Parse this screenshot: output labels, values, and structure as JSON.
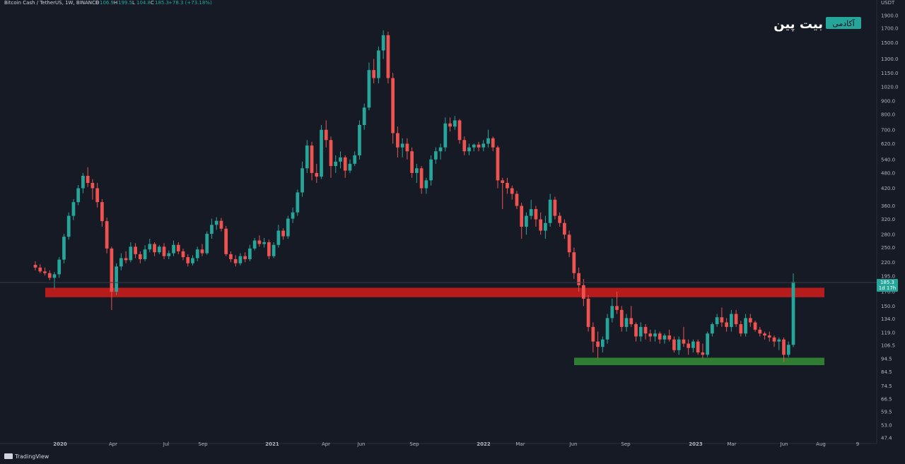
{
  "header": {
    "symbol": "Bitcoin Cash / TetherUS, 1W, BINANCE",
    "ohlc_prefix": "O",
    "open": "106.9",
    "high_prefix": "H",
    "high": "199.5",
    "low_prefix": "L",
    "low": "104.8",
    "close_prefix": "C",
    "close": "185.3",
    "change": "+78.3 (+73.18%)"
  },
  "logo": {
    "badge_text": "آکادمی",
    "brand_text": "بیت پین"
  },
  "price_axis": {
    "currency": "USDT",
    "ticks": [
      "1900.0",
      "1700.0",
      "1500.0",
      "1300.0",
      "1150.0",
      "1020.0",
      "900.0",
      "800.0",
      "700.0",
      "620.0",
      "540.0",
      "480.0",
      "420.0",
      "360.0",
      "320.0",
      "280.0",
      "250.0",
      "220.0",
      "195.0",
      "170.0",
      "150.0",
      "134.0",
      "119.0",
      "106.5",
      "94.5",
      "84.5",
      "74.5",
      "66.5",
      "59.5",
      "53.0",
      "47.4"
    ],
    "current_price": "185.3",
    "countdown": "1d 17h"
  },
  "time_axis": {
    "ticks": [
      "2020",
      "Apr",
      "Jul",
      "Sep",
      "2021",
      "Apr",
      "Jun",
      "Sep",
      "2022",
      "Mar",
      "Jun",
      "Sep",
      "2023",
      "Mar",
      "Jun",
      "Aug",
      "9"
    ]
  },
  "footer": {
    "brand": "TradingView"
  },
  "colors": {
    "background": "#161a25",
    "up": "#26a69a",
    "down": "#ef5350",
    "resistance_zone": "#b71c1c",
    "support_zone": "#2e7d32",
    "axis_text": "#b2b5be",
    "price_tag": "#26a69a"
  },
  "chart_data": {
    "type": "candlestick",
    "scale": "log",
    "ylim": [
      47.4,
      1950
    ],
    "zones": [
      {
        "name": "resistance",
        "from": 162,
        "to": 176,
        "start": "2019-12",
        "end": "2023-08",
        "color": "#b71c1c"
      },
      {
        "name": "support",
        "from": 89.5,
        "to": 95.5,
        "start": "2022-06",
        "end": "2023-08",
        "color": "#2e7d32"
      }
    ],
    "ohlc": [
      [
        215,
        222,
        205,
        210
      ],
      [
        210,
        216,
        200,
        203
      ],
      [
        203,
        210,
        196,
        200
      ],
      [
        200,
        205,
        188,
        192
      ],
      [
        192,
        202,
        175,
        198
      ],
      [
        198,
        230,
        192,
        225
      ],
      [
        225,
        282,
        218,
        275
      ],
      [
        275,
        340,
        268,
        330
      ],
      [
        330,
        382,
        318,
        372
      ],
      [
        372,
        432,
        362,
        420
      ],
      [
        420,
        480,
        402,
        468
      ],
      [
        468,
        505,
        425,
        440
      ],
      [
        440,
        455,
        380,
        420
      ],
      [
        420,
        440,
        355,
        372
      ],
      [
        372,
        382,
        300,
        315
      ],
      [
        315,
        325,
        238,
        248
      ],
      [
        248,
        252,
        145,
        170
      ],
      [
        170,
        218,
        165,
        212
      ],
      [
        212,
        238,
        205,
        228
      ],
      [
        228,
        242,
        218,
        224
      ],
      [
        224,
        262,
        220,
        252
      ],
      [
        252,
        260,
        228,
        236
      ],
      [
        236,
        242,
        218,
        226
      ],
      [
        226,
        255,
        222,
        246
      ],
      [
        246,
        270,
        240,
        258
      ],
      [
        258,
        262,
        232,
        240
      ],
      [
        240,
        256,
        236,
        252
      ],
      [
        252,
        260,
        226,
        232
      ],
      [
        232,
        244,
        226,
        238
      ],
      [
        238,
        266,
        232,
        256
      ],
      [
        256,
        262,
        236,
        242
      ],
      [
        242,
        248,
        224,
        230
      ],
      [
        230,
        236,
        212,
        218
      ],
      [
        218,
        234,
        214,
        228
      ],
      [
        228,
        252,
        222,
        246
      ],
      [
        246,
        258,
        232,
        238
      ],
      [
        238,
        288,
        235,
        282
      ],
      [
        282,
        322,
        270,
        305
      ],
      [
        305,
        326,
        292,
        316
      ],
      [
        316,
        324,
        288,
        295
      ],
      [
        295,
        302,
        232,
        236
      ],
      [
        236,
        242,
        220,
        226
      ],
      [
        226,
        234,
        212,
        218
      ],
      [
        218,
        238,
        214,
        232
      ],
      [
        232,
        240,
        220,
        226
      ],
      [
        226,
        256,
        222,
        248
      ],
      [
        248,
        272,
        244,
        266
      ],
      [
        266,
        278,
        252,
        258
      ],
      [
        258,
        272,
        250,
        262
      ],
      [
        262,
        268,
        226,
        232
      ],
      [
        232,
        262,
        228,
        256
      ],
      [
        256,
        305,
        250,
        290
      ],
      [
        290,
        296,
        268,
        276
      ],
      [
        276,
        330,
        270,
        322
      ],
      [
        322,
        355,
        310,
        340
      ],
      [
        340,
        415,
        330,
        405
      ],
      [
        405,
        530,
        390,
        500
      ],
      [
        500,
        640,
        480,
        610
      ],
      [
        610,
        630,
        450,
        480
      ],
      [
        480,
        520,
        440,
        465
      ],
      [
        465,
        730,
        455,
        700
      ],
      [
        700,
        760,
        600,
        640
      ],
      [
        640,
        660,
        460,
        510
      ],
      [
        510,
        560,
        480,
        530
      ],
      [
        530,
        580,
        500,
        550
      ],
      [
        550,
        560,
        460,
        490
      ],
      [
        490,
        540,
        480,
        520
      ],
      [
        520,
        580,
        510,
        560
      ],
      [
        560,
        760,
        540,
        730
      ],
      [
        730,
        880,
        700,
        850
      ],
      [
        850,
        1260,
        830,
        1180
      ],
      [
        1180,
        1300,
        1050,
        1100
      ],
      [
        1100,
        1450,
        1050,
        1400
      ],
      [
        1400,
        1670,
        1300,
        1600
      ],
      [
        1600,
        1650,
        1050,
        1100
      ],
      [
        1100,
        1150,
        620,
        680
      ],
      [
        680,
        720,
        550,
        600
      ],
      [
        600,
        650,
        550,
        620
      ],
      [
        620,
        650,
        540,
        580
      ],
      [
        580,
        600,
        460,
        480
      ],
      [
        480,
        520,
        440,
        500
      ],
      [
        500,
        510,
        400,
        420
      ],
      [
        420,
        460,
        400,
        450
      ],
      [
        450,
        560,
        430,
        540
      ],
      [
        540,
        600,
        520,
        580
      ],
      [
        580,
        620,
        540,
        600
      ],
      [
        600,
        780,
        580,
        740
      ],
      [
        740,
        780,
        690,
        720
      ],
      [
        720,
        790,
        700,
        760
      ],
      [
        760,
        770,
        620,
        640
      ],
      [
        640,
        660,
        560,
        580
      ],
      [
        580,
        620,
        560,
        600
      ],
      [
        600,
        620,
        580,
        615
      ],
      [
        615,
        630,
        580,
        600
      ],
      [
        600,
        640,
        580,
        620
      ],
      [
        620,
        700,
        600,
        650
      ],
      [
        650,
        660,
        580,
        600
      ],
      [
        600,
        610,
        420,
        450
      ],
      [
        450,
        460,
        350,
        440
      ],
      [
        440,
        460,
        400,
        420
      ],
      [
        420,
        430,
        380,
        400
      ],
      [
        400,
        410,
        350,
        360
      ],
      [
        360,
        370,
        270,
        300
      ],
      [
        300,
        340,
        280,
        330
      ],
      [
        330,
        380,
        320,
        350
      ],
      [
        350,
        360,
        300,
        320
      ],
      [
        320,
        340,
        280,
        290
      ],
      [
        290,
        330,
        270,
        310
      ],
      [
        310,
        400,
        300,
        380
      ],
      [
        380,
        390,
        320,
        330
      ],
      [
        330,
        340,
        300,
        310
      ],
      [
        310,
        320,
        270,
        280
      ],
      [
        280,
        290,
        230,
        240
      ],
      [
        240,
        250,
        190,
        200
      ],
      [
        200,
        210,
        170,
        180
      ],
      [
        180,
        190,
        150,
        160
      ],
      [
        160,
        165,
        120,
        125
      ],
      [
        125,
        130,
        100,
        110
      ],
      [
        110,
        120,
        95,
        105
      ],
      [
        105,
        115,
        100,
        112
      ],
      [
        112,
        140,
        108,
        135
      ],
      [
        135,
        160,
        130,
        150
      ],
      [
        150,
        170,
        140,
        145
      ],
      [
        145,
        150,
        120,
        125
      ],
      [
        125,
        140,
        120,
        135
      ],
      [
        135,
        150,
        125,
        128
      ],
      [
        128,
        130,
        110,
        115
      ],
      [
        115,
        130,
        110,
        125
      ],
      [
        125,
        128,
        112,
        118
      ],
      [
        118,
        122,
        110,
        115
      ],
      [
        115,
        122,
        110,
        118
      ],
      [
        118,
        120,
        108,
        112
      ],
      [
        112,
        118,
        108,
        116
      ],
      [
        116,
        122,
        110,
        112
      ],
      [
        112,
        115,
        100,
        102
      ],
      [
        102,
        115,
        98,
        112
      ],
      [
        112,
        125,
        105,
        108
      ],
      [
        108,
        112,
        98,
        104
      ],
      [
        104,
        112,
        100,
        110
      ],
      [
        110,
        112,
        98,
        100
      ],
      [
        100,
        108,
        95,
        98
      ],
      [
        98,
        120,
        96,
        118
      ],
      [
        118,
        130,
        115,
        128
      ],
      [
        128,
        140,
        125,
        136
      ],
      [
        136,
        148,
        125,
        130
      ],
      [
        130,
        135,
        120,
        125
      ],
      [
        125,
        145,
        120,
        140
      ],
      [
        140,
        145,
        125,
        128
      ],
      [
        128,
        132,
        115,
        118
      ],
      [
        118,
        140,
        115,
        135
      ],
      [
        135,
        140,
        125,
        130
      ],
      [
        130,
        132,
        120,
        122
      ],
      [
        122,
        125,
        115,
        118
      ],
      [
        118,
        120,
        112,
        116
      ],
      [
        116,
        120,
        110,
        114
      ],
      [
        114,
        116,
        105,
        110
      ],
      [
        110,
        114,
        102,
        112
      ],
      [
        112,
        114,
        92,
        98
      ],
      [
        98,
        110,
        96,
        106.9
      ],
      [
        106.9,
        199.5,
        104.8,
        185.3
      ]
    ]
  }
}
